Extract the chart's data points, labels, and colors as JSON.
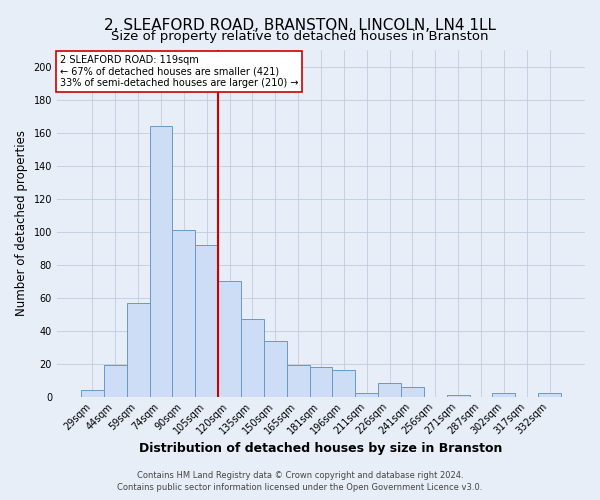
{
  "title": "2, SLEAFORD ROAD, BRANSTON, LINCOLN, LN4 1LL",
  "subtitle": "Size of property relative to detached houses in Branston",
  "xlabel": "Distribution of detached houses by size in Branston",
  "ylabel": "Number of detached properties",
  "categories": [
    "29sqm",
    "44sqm",
    "59sqm",
    "74sqm",
    "90sqm",
    "105sqm",
    "120sqm",
    "135sqm",
    "150sqm",
    "165sqm",
    "181sqm",
    "196sqm",
    "211sqm",
    "226sqm",
    "241sqm",
    "256sqm",
    "271sqm",
    "287sqm",
    "302sqm",
    "317sqm",
    "332sqm"
  ],
  "values": [
    4,
    19,
    57,
    164,
    101,
    92,
    70,
    47,
    34,
    19,
    18,
    16,
    2,
    8,
    6,
    0,
    1,
    0,
    2,
    0,
    2
  ],
  "bar_color": "#ccddf5",
  "bar_edge_color": "#6699cc",
  "vline_color": "#cc0000",
  "vline_x_index": 6,
  "annotation_text": "2 SLEAFORD ROAD: 119sqm\n← 67% of detached houses are smaller (421)\n33% of semi-detached houses are larger (210) →",
  "annotation_box_color": "#ffffff",
  "annotation_box_edge": "#cc0000",
  "ylim": [
    0,
    210
  ],
  "yticks": [
    0,
    20,
    40,
    60,
    80,
    100,
    120,
    140,
    160,
    180,
    200
  ],
  "title_fontsize": 11,
  "subtitle_fontsize": 9.5,
  "xlabel_fontsize": 9,
  "ylabel_fontsize": 8.5,
  "tick_fontsize": 7,
  "annotation_fontsize": 7,
  "footer_line1": "Contains HM Land Registry data © Crown copyright and database right 2024.",
  "footer_line2": "Contains public sector information licensed under the Open Government Licence v3.0.",
  "background_color": "#e8eef8",
  "plot_background": "#e8eef8",
  "grid_color": "#c0cce0"
}
